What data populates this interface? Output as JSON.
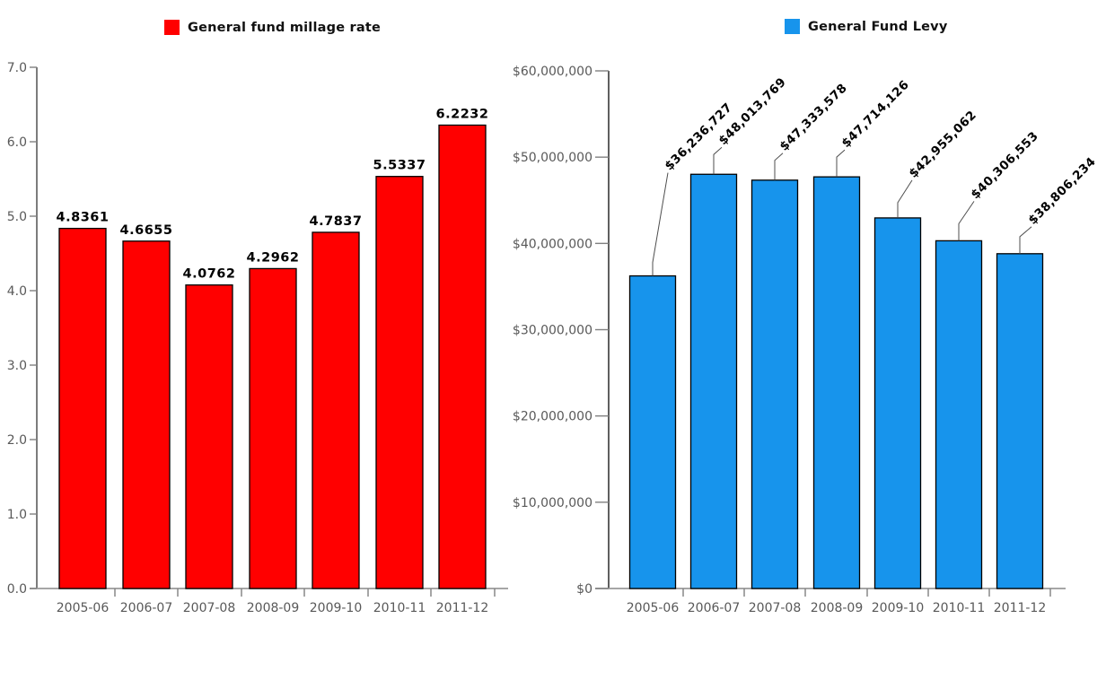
{
  "page": {
    "background_color": "#ffffff"
  },
  "chart_data": [
    {
      "id": "millage",
      "type": "bar",
      "title": "",
      "legend": "General fund millage rate",
      "legend_position": "top",
      "series_color": "#ff0000",
      "bar_border_color": "#000000",
      "categories": [
        "2005-06",
        "2006-07",
        "2007-08",
        "2008-09",
        "2009-10",
        "2010-11",
        "2011-12"
      ],
      "values": [
        4.8361,
        4.6655,
        4.0762,
        4.2962,
        4.7837,
        5.5337,
        6.2232
      ],
      "value_labels": [
        "4.8361",
        "4.6655",
        "4.0762",
        "4.2962",
        "4.7837",
        "5.5337",
        "6.2232"
      ],
      "value_label_style": "horizontal-above-bar",
      "xlabel": "",
      "ylabel": "",
      "ylim": [
        0,
        7
      ],
      "ytick_labels": [
        "0.0",
        "1.0",
        "2.0",
        "3.0",
        "4.0",
        "5.0",
        "6.0",
        "7.0"
      ],
      "grid": false
    },
    {
      "id": "levy",
      "type": "bar",
      "title": "",
      "legend": "General Fund Levy",
      "legend_position": "top",
      "series_color": "#1794ec",
      "bar_border_color": "#000000",
      "categories": [
        "2005-06",
        "2006-07",
        "2007-08",
        "2008-09",
        "2009-10",
        "2010-11",
        "2011-12"
      ],
      "values": [
        36236727,
        48013769,
        47333578,
        47714126,
        42955062,
        40306553,
        38806234
      ],
      "value_labels": [
        "$36,236,727",
        "$48,013,769",
        "$47,333,578",
        "$47,714,126",
        "$42,955,062",
        "$40,306,553",
        "$38,806,234"
      ],
      "value_label_style": "rotated-45-with-leader-line",
      "xlabel": "",
      "ylabel": "",
      "ylim": [
        0,
        60000000
      ],
      "ytick_labels": [
        "$0",
        "$10,000,000",
        "$20,000,000",
        "$30,000,000",
        "$40,000,000",
        "$50,000,000",
        "$60,000,000"
      ],
      "grid": false
    }
  ]
}
